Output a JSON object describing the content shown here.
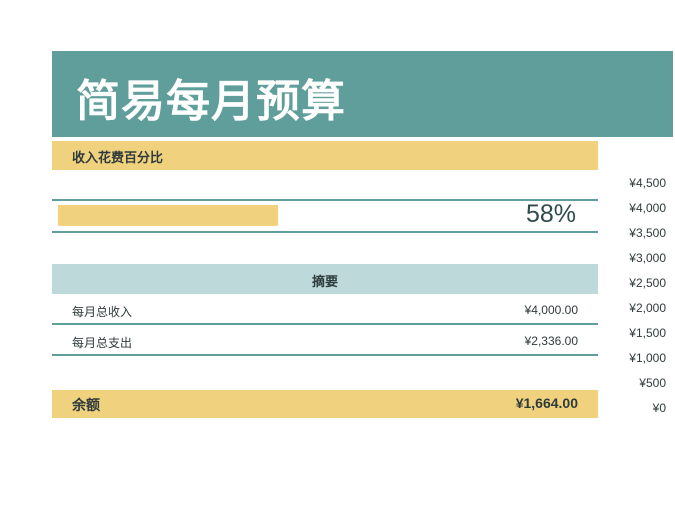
{
  "title": "简易每月预算",
  "percent_section": {
    "header": "收入花费百分比",
    "percent_text": "58%",
    "percent_value": 0.58
  },
  "summary": {
    "header": "摘要",
    "rows": [
      {
        "label": "每月总收入",
        "value": "¥4,000.00"
      },
      {
        "label": "每月总支出",
        "value": "¥2,336.00"
      }
    ],
    "balance_label": "余额",
    "balance_value": "¥1,664.00"
  },
  "axis_ticks": [
    "¥4,500",
    "¥4,000",
    "¥3,500",
    "¥3,000",
    "¥2,500",
    "¥2,000",
    "¥1,500",
    "¥1,000",
    "¥500",
    "¥0"
  ],
  "colors": {
    "teal": "#5f9e9a",
    "gold": "#f0d27e",
    "light_teal": "#bdd9da"
  }
}
